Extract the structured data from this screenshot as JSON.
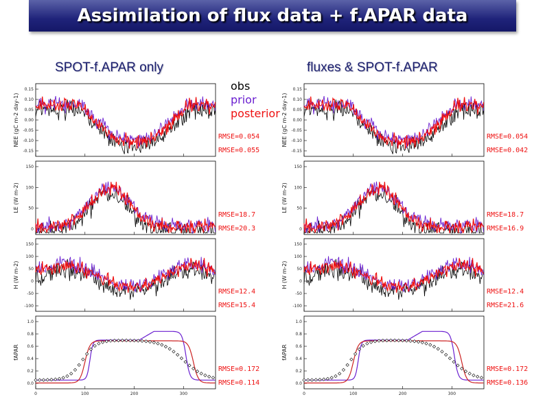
{
  "title": "Assimilation of flux data + f.APAR data",
  "columns": [
    {
      "title": "SPOT-f.APAR only"
    },
    {
      "title": "fluxes & SPOT-f.APAR"
    }
  ],
  "legend": [
    {
      "label": "obs",
      "color": "#000000"
    },
    {
      "label": "prior",
      "color": "#6a1fd0"
    },
    {
      "label": "posterior",
      "color": "#ee1111"
    }
  ],
  "chart_data": [
    {
      "type": "line",
      "panel": "NEE",
      "column": "SPOT-f.APAR only",
      "ylabel": "NEE (gC m-2 day-1)",
      "yticks": [
        "0.15",
        "0.10",
        "0.05",
        "0.00",
        "-0.05",
        "-0.10",
        "-0.15"
      ],
      "xlim": [
        0,
        365
      ],
      "rmse": [
        {
          "label": "RMSE=0.054",
          "color": "#ee1111"
        },
        {
          "label": "RMSE=0.055",
          "color": "#ee1111"
        }
      ]
    },
    {
      "type": "line",
      "panel": "LE",
      "column": "SPOT-f.APAR only",
      "ylabel": "LE (W m-2)",
      "yticks": [
        "150",
        "100",
        "50",
        "0"
      ],
      "xlim": [
        0,
        365
      ],
      "rmse": [
        {
          "label": "RMSE=18.7",
          "color": "#ee1111"
        },
        {
          "label": "RMSE=20.3",
          "color": "#ee1111"
        }
      ]
    },
    {
      "type": "line",
      "panel": "H",
      "column": "SPOT-f.APAR only",
      "ylabel": "H (W m-2)",
      "yticks": [
        "150",
        "100",
        "50",
        "0",
        "-50",
        "-100"
      ],
      "xlim": [
        0,
        365
      ],
      "rmse": [
        {
          "label": "RMSE=12.4",
          "color": "#ee1111"
        },
        {
          "label": "RMSE=15.4",
          "color": "#ee1111"
        }
      ]
    },
    {
      "type": "line",
      "panel": "fAPAR",
      "column": "SPOT-f.APAR only",
      "ylabel": "fAPAR",
      "yticks": [
        "1.0",
        "0.8",
        "0.6",
        "0.4",
        "0.2",
        "0.0"
      ],
      "xticks": [
        "0",
        "100",
        "200",
        "300"
      ],
      "xlim": [
        0,
        365
      ],
      "rmse": [
        {
          "label": "RMSE=0.172",
          "color": "#ee1111"
        },
        {
          "label": "RMSE=0.114",
          "color": "#ee1111"
        }
      ]
    },
    {
      "type": "line",
      "panel": "NEE",
      "column": "fluxes & SPOT-f.APAR",
      "ylabel": "NEE (gC m-2 day-1)",
      "yticks": [
        "0.15",
        "0.10",
        "0.05",
        "0.00",
        "-0.05",
        "-0.10",
        "-0.15"
      ],
      "xlim": [
        0,
        365
      ],
      "rmse": [
        {
          "label": "RMSE=0.054",
          "color": "#ee1111"
        },
        {
          "label": "RMSE=0.042",
          "color": "#ee1111"
        }
      ]
    },
    {
      "type": "line",
      "panel": "LE",
      "column": "fluxes & SPOT-f.APAR",
      "ylabel": "LE (W m-2)",
      "yticks": [
        "150",
        "100",
        "50",
        "0"
      ],
      "xlim": [
        0,
        365
      ],
      "rmse": [
        {
          "label": "RMSE=18.7",
          "color": "#ee1111"
        },
        {
          "label": "RMSE=16.9",
          "color": "#ee1111"
        }
      ]
    },
    {
      "type": "line",
      "panel": "H",
      "column": "fluxes & SPOT-f.APAR",
      "ylabel": "H (W m-2)",
      "yticks": [
        "150",
        "100",
        "50",
        "0",
        "-50",
        "-100"
      ],
      "xlim": [
        0,
        365
      ],
      "rmse": [
        {
          "label": "RMSE=12.4",
          "color": "#ee1111"
        },
        {
          "label": "RMSE=21.6",
          "color": "#ee1111"
        }
      ]
    },
    {
      "type": "line",
      "panel": "fAPAR",
      "column": "fluxes & SPOT-f.APAR",
      "ylabel": "fAPAR",
      "yticks": [
        "1.0",
        "0.8",
        "0.6",
        "0.4",
        "0.2",
        "0.0"
      ],
      "xticks": [
        "0",
        "100",
        "200",
        "300"
      ],
      "xlim": [
        0,
        365
      ],
      "rmse": [
        {
          "label": "RMSE=0.172",
          "color": "#ee1111"
        },
        {
          "label": "RMSE=0.136",
          "color": "#ee1111"
        }
      ]
    }
  ]
}
